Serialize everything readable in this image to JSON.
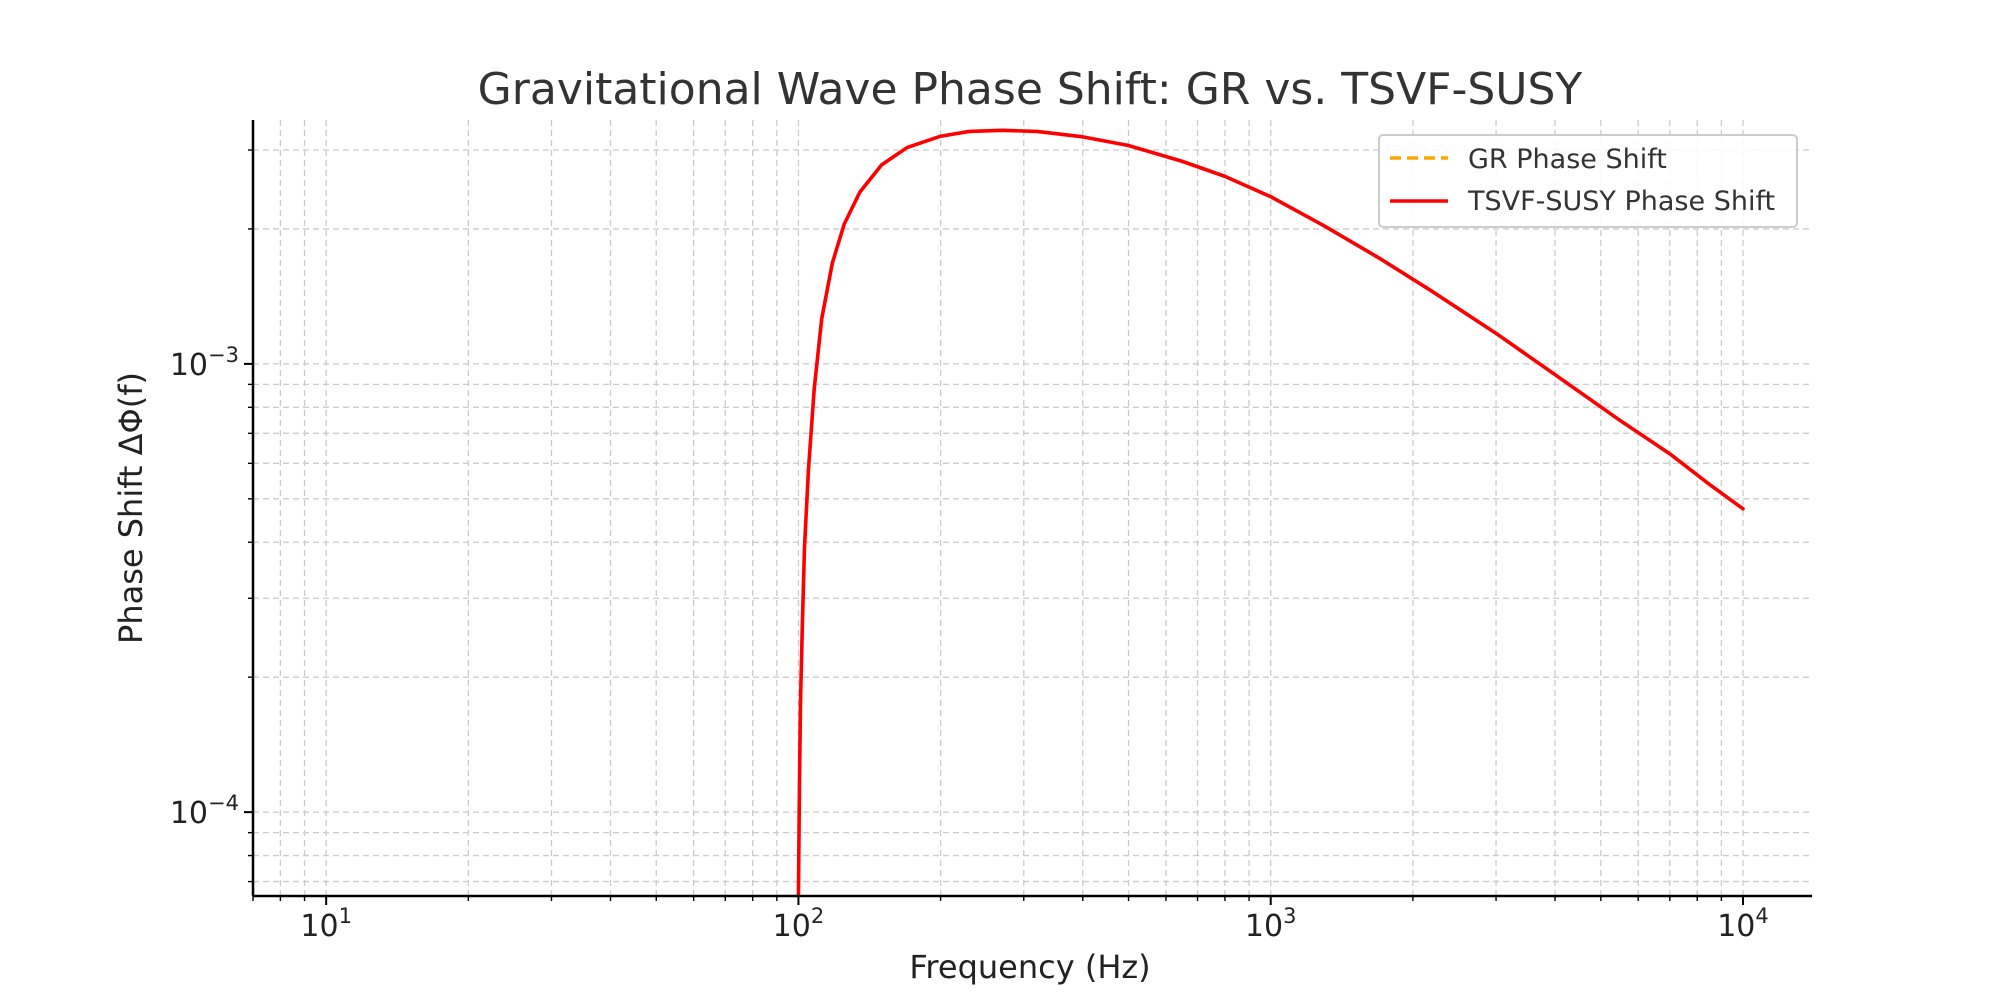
{
  "chart_data": {
    "type": "line",
    "title": "Gravitational Wave Phase Shift: GR vs. TSVF-SUSY",
    "xlabel": "Frequency (Hz)",
    "ylabel": "Phase Shift ΔΦ(f)",
    "xscale": "log",
    "yscale": "log",
    "xlim": [
      7,
      14000
    ],
    "ylim": [
      6.5e-05,
      0.0035
    ],
    "grid": true,
    "grid_minor": true,
    "legend_position": "top-right",
    "xticks": [
      {
        "value": 10,
        "base": "10",
        "exp": "1"
      },
      {
        "value": 100,
        "base": "10",
        "exp": "2"
      },
      {
        "value": 1000,
        "base": "10",
        "exp": "3"
      },
      {
        "value": 10000,
        "base": "10",
        "exp": "4"
      }
    ],
    "yticks": [
      {
        "value": 0.0001,
        "base": "10",
        "exp": "−4"
      },
      {
        "value": 0.001,
        "base": "10",
        "exp": "−3"
      }
    ],
    "series": [
      {
        "name": "GR Phase Shift",
        "color": "#FFA500",
        "style": "dashed",
        "x": [],
        "y": []
      },
      {
        "name": "TSVF-SUSY Phase Shift",
        "color": "#FF0000",
        "style": "solid",
        "x": [
          100.0,
          100.5,
          101,
          102,
          103,
          105,
          108,
          112,
          118,
          125,
          135,
          150,
          170,
          200,
          230,
          270,
          320,
          400,
          500,
          650,
          800,
          1000,
          1300,
          1700,
          2200,
          3000,
          4000,
          5500,
          7000,
          8500,
          10000
        ],
        "y": [
          6.5e-05,
          0.000115,
          0.000175,
          0.00027,
          0.00039,
          0.00058,
          0.00088,
          0.00126,
          0.00168,
          0.00205,
          0.00242,
          0.00278,
          0.00304,
          0.00322,
          0.0033,
          0.00332,
          0.0033,
          0.00321,
          0.00307,
          0.00283,
          0.00262,
          0.00236,
          0.00203,
          0.00172,
          0.00145,
          0.00117,
          0.000946,
          0.000747,
          0.00063,
          0.000538,
          0.000475
        ]
      }
    ]
  }
}
